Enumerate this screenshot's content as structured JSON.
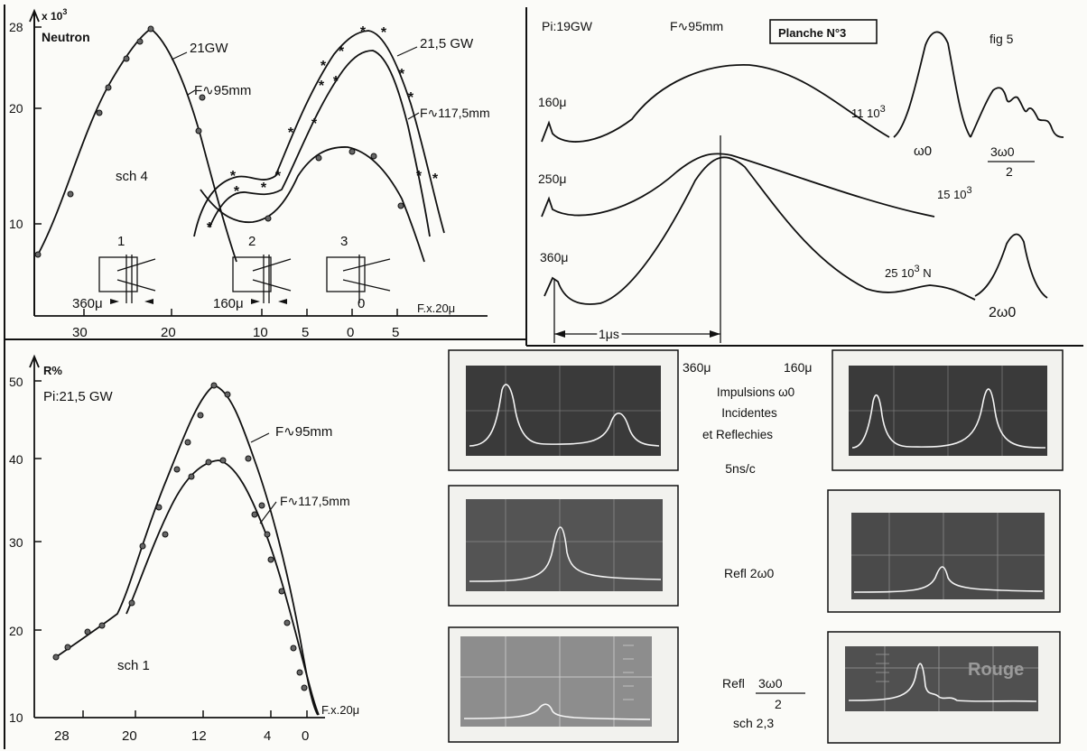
{
  "top_left": {
    "y_unit": "x 10",
    "y_unit_exp": "3",
    "y_name": "Neutron",
    "scheme": "sch 4",
    "x_axis_title": "F.x.20μ",
    "y_ticks": [
      "28",
      "20",
      "10"
    ],
    "x_ticks": [
      "30",
      "20",
      "10",
      "5",
      "0",
      "5"
    ],
    "curve_labels": [
      "21GW",
      "F∿95mm",
      "21,5 GW",
      "F∿117,5mm"
    ],
    "config_labels": [
      "1",
      "2",
      "3"
    ],
    "dim_labels": [
      "360μ",
      "160μ",
      "0"
    ]
  },
  "bottom_left": {
    "y_unit": "R%",
    "power": "Pi:21,5 GW",
    "scheme": "sch 1",
    "x_axis_title": "F.x.20μ",
    "y_ticks": [
      "50",
      "40",
      "30",
      "20",
      "10"
    ],
    "x_ticks": [
      "28",
      "20",
      "12",
      "4",
      "0"
    ],
    "curve_labels": [
      "F∿95mm",
      "F∿117,5mm"
    ]
  },
  "top_right": {
    "power": "Pi:19GW",
    "focal": "F∿95mm",
    "plate": "Planche N°3",
    "figure": "fig 5",
    "traces": [
      {
        "label": "160μ",
        "count": "11 10",
        "exp": "3",
        "unit": ""
      },
      {
        "label": "250μ",
        "count": "15 10",
        "exp": "3",
        "unit": ""
      },
      {
        "label": "360μ",
        "count": "25 10",
        "exp": "3",
        "unit": " N"
      }
    ],
    "harmonics": {
      "w0": "ω0",
      "w3_num": "3ω0",
      "w3_den": "2",
      "w2": "2ω0"
    },
    "timebase": "1μs"
  },
  "photos": {
    "label_360": "360μ",
    "label_160": "160μ",
    "caption_lines": [
      "Impulsions ω0",
      "Incidentes",
      "et Reflechies"
    ],
    "timescale": "5ns/c",
    "refl_2w": "Refl 2ω0",
    "refl_3w_prefix": "Refl",
    "refl_3w_num": "3ω0",
    "refl_3w_den": "2",
    "scheme": "sch 2,3",
    "stamp": "Rouge"
  }
}
